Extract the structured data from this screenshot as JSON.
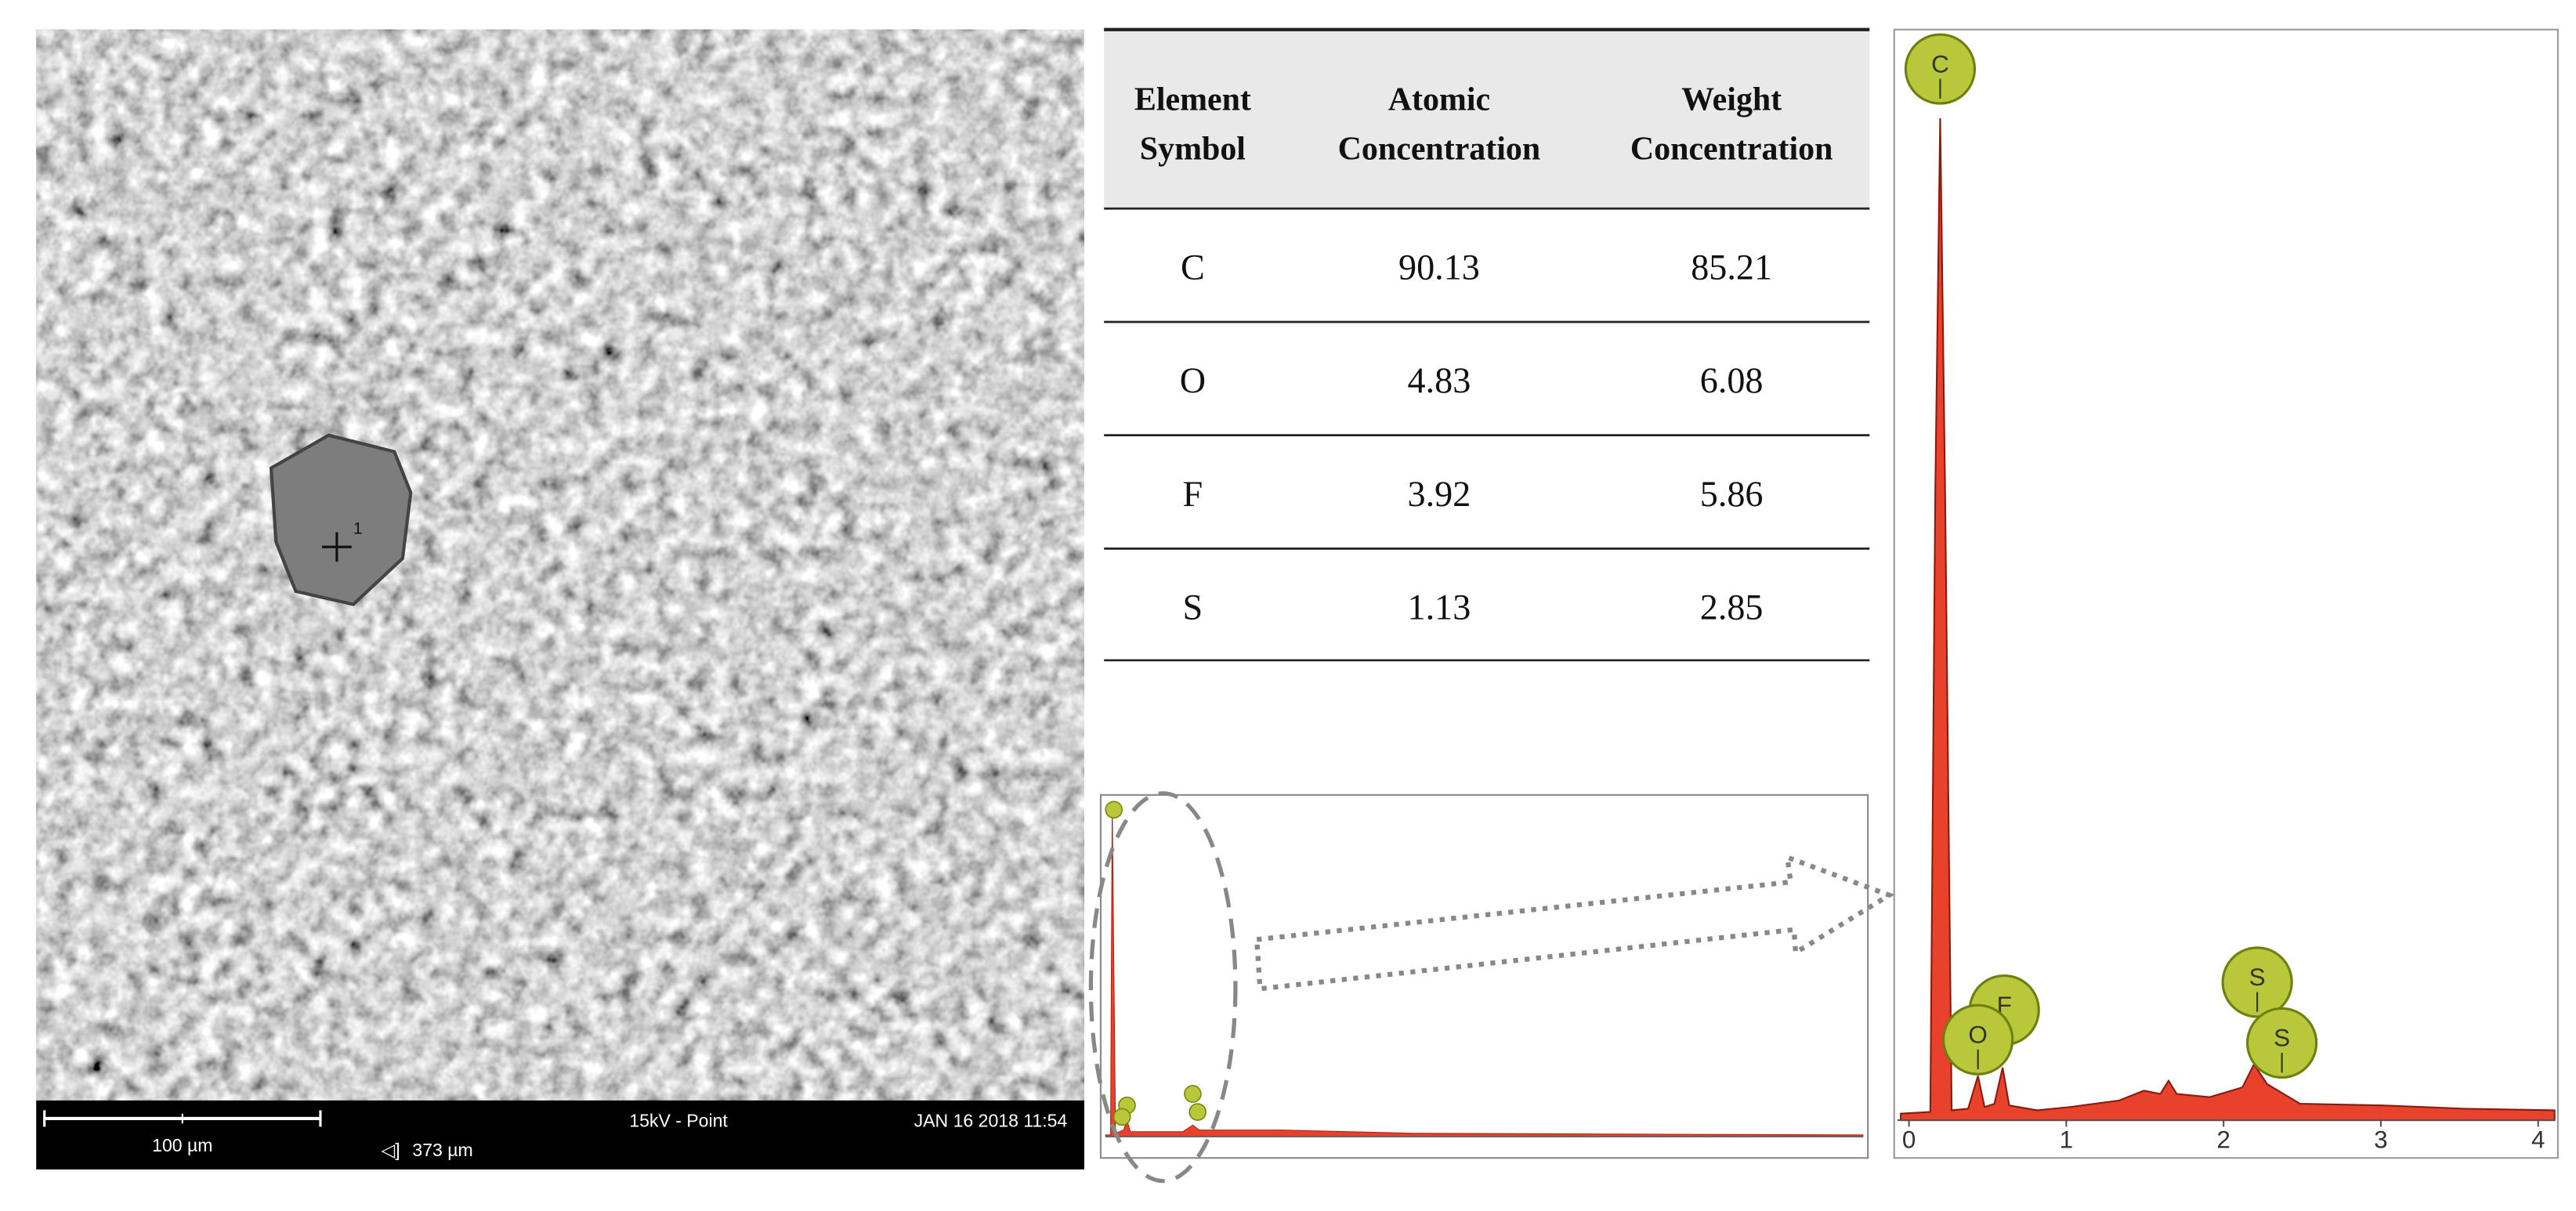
{
  "sem_image": {
    "point_marker": "1",
    "scale_bar_label": "100 µm",
    "field_width": "373 µm",
    "field_icon": "◁]",
    "mode": "15kV - Point",
    "timestamp": "JAN 16 2018 11:54"
  },
  "table": {
    "header": [
      [
        "Element",
        "Symbol"
      ],
      [
        "Atomic",
        "Concentration"
      ],
      [
        "Weight",
        "Concentration"
      ]
    ],
    "rows": [
      [
        "C",
        "90.13",
        "85.21"
      ],
      [
        "O",
        "4.83",
        "6.08"
      ],
      [
        "F",
        "3.92",
        "5.86"
      ],
      [
        "S",
        "1.13",
        "2.85"
      ]
    ]
  },
  "spectrum": {
    "xticks": [
      0,
      1,
      2,
      3,
      4
    ],
    "peaks": [
      "C",
      "O",
      "F",
      "S",
      "S"
    ]
  }
}
